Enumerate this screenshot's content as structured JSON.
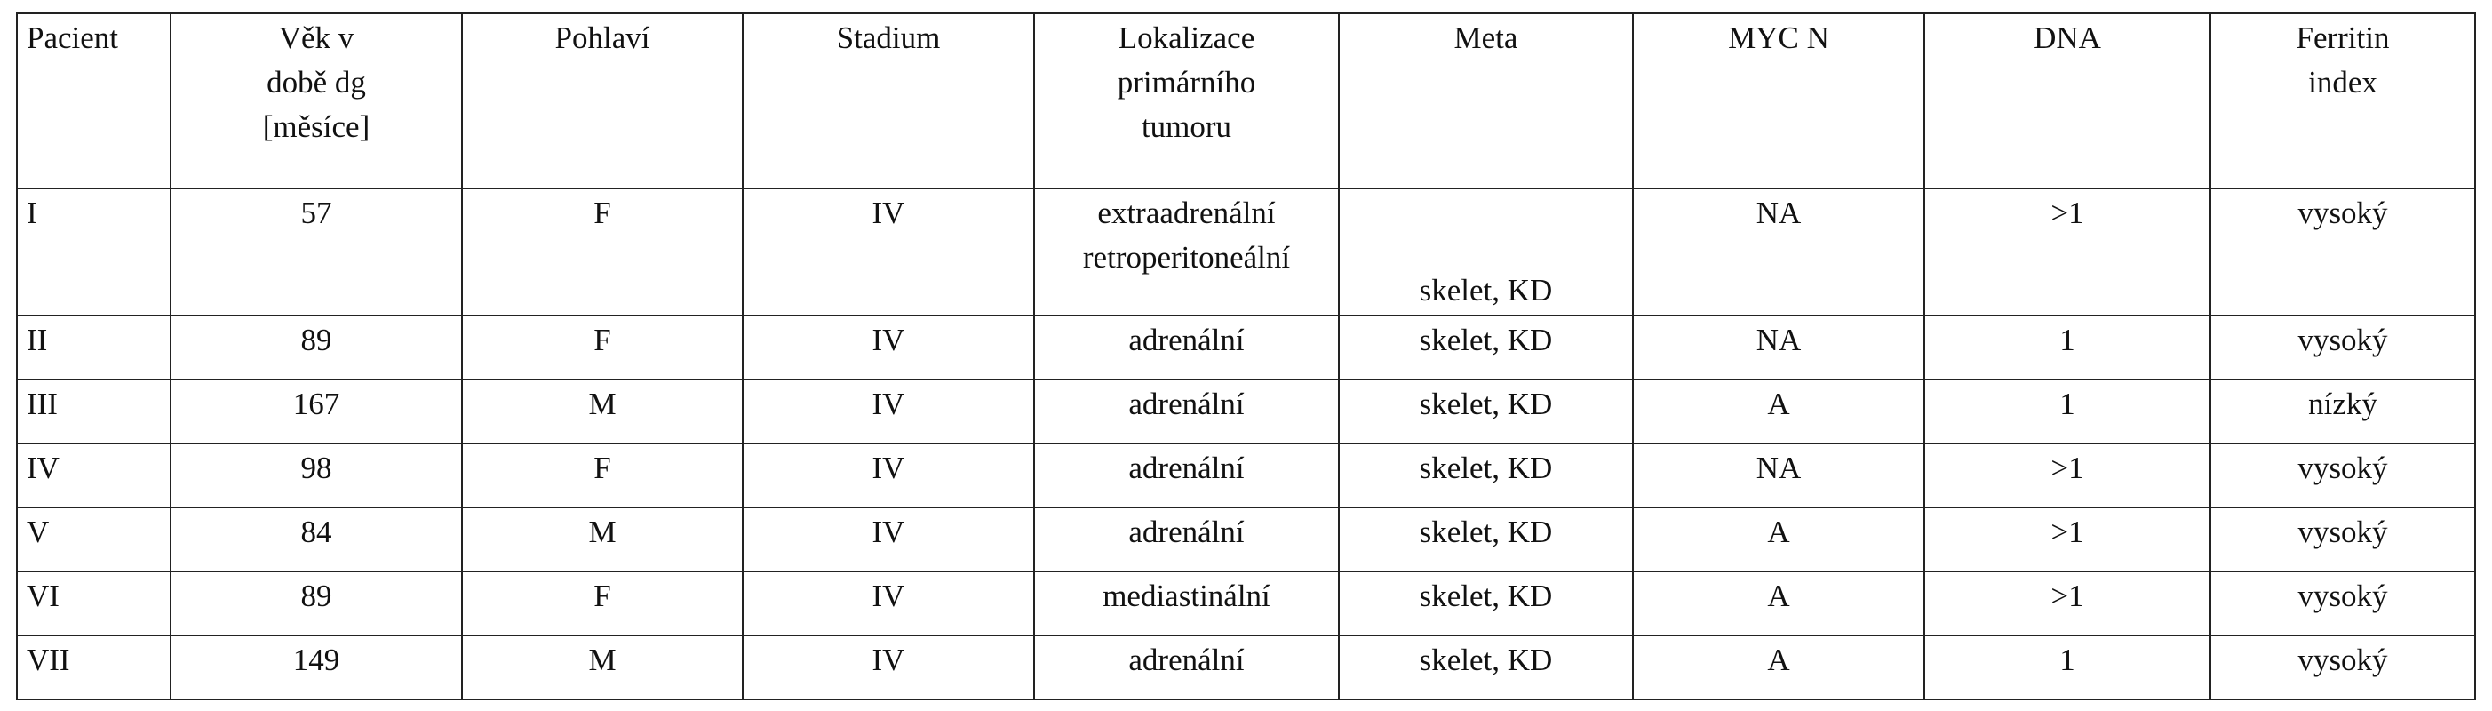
{
  "table": {
    "header": [
      [
        "Pacient"
      ],
      [
        "Věk v",
        "době dg",
        "[měsíce]"
      ],
      [
        "Pohlaví"
      ],
      [
        "Stadium"
      ],
      [
        "Lokalizace",
        "primárního",
        "tumoru"
      ],
      [
        "Meta"
      ],
      [
        "MYC N"
      ],
      [
        "DNA"
      ],
      [
        "Ferritin",
        "index"
      ]
    ],
    "rows": [
      [
        "I",
        "57",
        "F",
        "IV",
        [
          "extraadrenální",
          "retroperitoneální"
        ],
        "skelet, KD",
        "NA",
        ">1",
        "vysoký"
      ],
      [
        "II",
        "89",
        "F",
        "IV",
        "adrenální",
        "skelet, KD",
        "NA",
        "1",
        "vysoký"
      ],
      [
        "III",
        "167",
        "M",
        "IV",
        "adrenální",
        "skelet, KD",
        "A",
        "1",
        "nízký"
      ],
      [
        "IV",
        "98",
        "F",
        "IV",
        "adrenální",
        "skelet, KD",
        "NA",
        ">1",
        "vysoký"
      ],
      [
        "V",
        "84",
        "M",
        "IV",
        "adrenální",
        "skelet, KD",
        "A",
        ">1",
        "vysoký"
      ],
      [
        "VI",
        "89",
        "F",
        "IV",
        "mediastinální",
        "skelet, KD",
        "A",
        ">1",
        "vysoký"
      ],
      [
        "VII",
        "149",
        "M",
        "IV",
        "adrenální",
        "skelet, KD",
        "A",
        "1",
        "vysoký"
      ]
    ]
  }
}
